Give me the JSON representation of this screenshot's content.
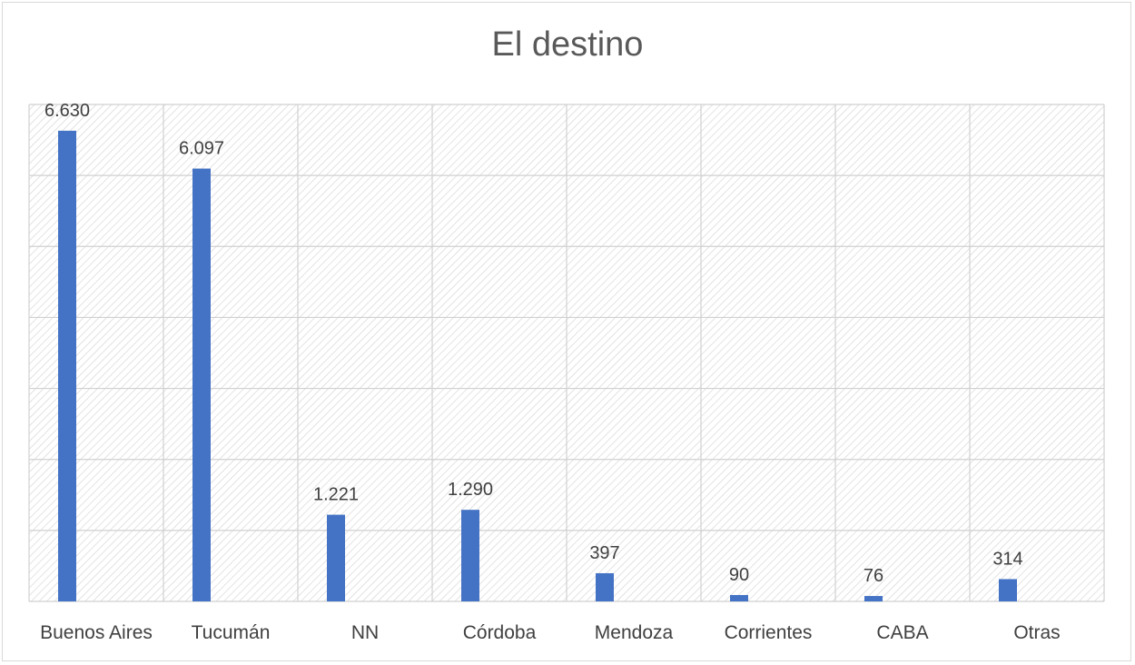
{
  "chart_data": {
    "type": "bar",
    "title": "El destino",
    "categories": [
      "Buenos Aires",
      "Tucumán",
      "NN",
      "Córdoba",
      "Mendoza",
      "Corrientes",
      "CABA",
      "Otras"
    ],
    "values": [
      6630,
      6097,
      1221,
      1290,
      397,
      90,
      76,
      314
    ],
    "value_labels": [
      "6.630",
      "6.097",
      "1.221",
      "1.290",
      "397",
      "90",
      "76",
      "314"
    ],
    "ylim": [
      0,
      7000
    ],
    "y_gridline_step": 1000,
    "y_axis_labels_visible": false,
    "grid": true,
    "bar_color": "#4472c4",
    "background": "diagonal hatch"
  }
}
